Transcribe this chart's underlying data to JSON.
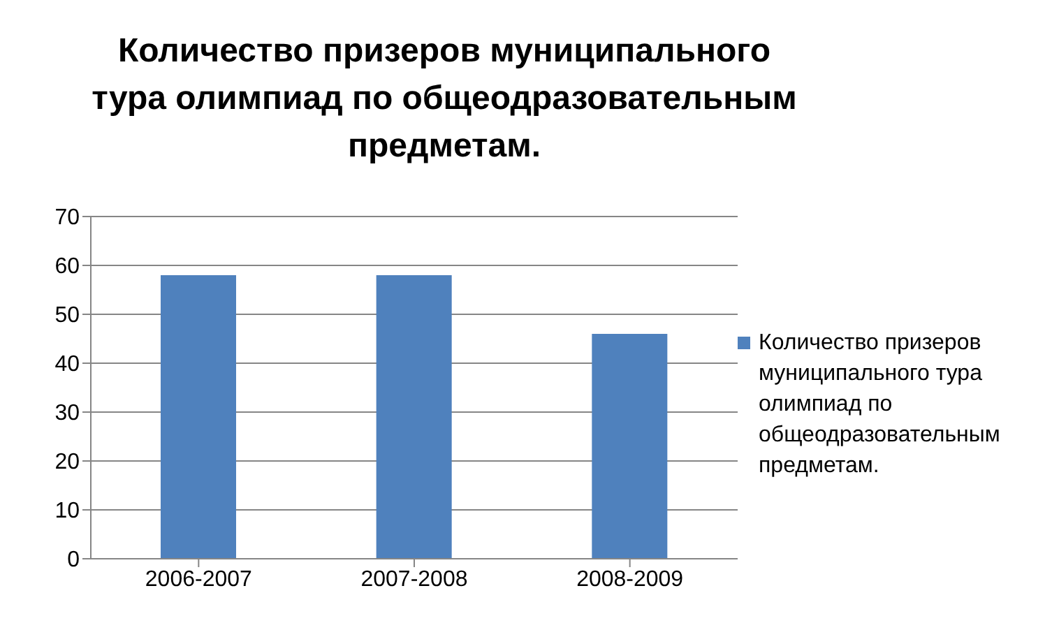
{
  "chart_data": {
    "type": "bar",
    "title": "Количество призеров муниципального тура олимпиад по общеодразовательным предметам.",
    "categories": [
      "2006-2007",
      "2007-2008",
      "2008-2009"
    ],
    "series": [
      {
        "name": "Количество призеров муниципального тура олимпиад по общеодразовательным предметам.",
        "color": "#4f81bd",
        "values": [
          58,
          58,
          46
        ]
      }
    ],
    "ylim": [
      0,
      70
    ],
    "yticks": [
      0,
      10,
      20,
      30,
      40,
      50,
      60,
      70
    ],
    "grid": "y",
    "legend": "right"
  }
}
